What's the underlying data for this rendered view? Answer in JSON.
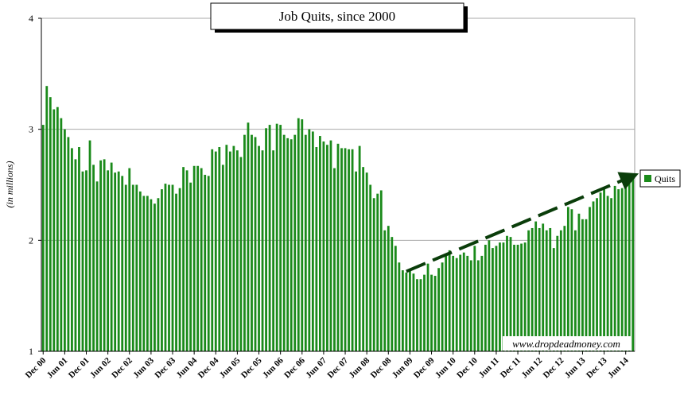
{
  "chart_data": {
    "type": "bar",
    "title": "Job Quits, since 2000",
    "ylabel": "(in millions)",
    "xlabel": "",
    "ylim": [
      1,
      4
    ],
    "yticks": [
      1,
      2,
      3,
      4
    ],
    "grid": true,
    "legend_position": "right",
    "x_start": "Dec 00",
    "x_tick_labels": [
      "Dec 00",
      "Jun 01",
      "Dec 01",
      "Jun 02",
      "Dec 02",
      "Jun 03",
      "Dec 03",
      "Jun 04",
      "Dec 04",
      "Jun 05",
      "Dec 05",
      "Jun 06",
      "Dec 06",
      "Jun 07",
      "Dec 07",
      "Jun 08",
      "Dec 08",
      "Jun 09",
      "Dec 09",
      "Jun 10",
      "Dec 10",
      "Jun 11",
      "Dec 11",
      "Jun 12",
      "Dec 12",
      "Jun 13",
      "Dec 13",
      "Jun 14"
    ],
    "series": [
      {
        "name": "Quits",
        "color": "#1a8a1a",
        "values": [
          3.04,
          3.39,
          3.29,
          3.18,
          3.2,
          3.1,
          3.0,
          2.93,
          2.83,
          2.73,
          2.84,
          2.62,
          2.63,
          2.9,
          2.68,
          2.53,
          2.72,
          2.73,
          2.63,
          2.7,
          2.61,
          2.62,
          2.58,
          2.5,
          2.65,
          2.5,
          2.5,
          2.44,
          2.4,
          2.4,
          2.37,
          2.33,
          2.38,
          2.46,
          2.51,
          2.5,
          2.5,
          2.42,
          2.47,
          2.66,
          2.63,
          2.52,
          2.67,
          2.67,
          2.65,
          2.59,
          2.58,
          2.82,
          2.8,
          2.84,
          2.68,
          2.86,
          2.8,
          2.85,
          2.81,
          2.75,
          2.95,
          3.06,
          2.95,
          2.93,
          2.85,
          2.81,
          3.01,
          3.04,
          2.81,
          3.05,
          3.04,
          2.95,
          2.92,
          2.91,
          2.95,
          3.1,
          3.09,
          2.95,
          3.0,
          2.98,
          2.84,
          2.94,
          2.89,
          2.86,
          2.9,
          2.65,
          2.87,
          2.83,
          2.83,
          2.82,
          2.82,
          2.62,
          2.85,
          2.66,
          2.61,
          2.5,
          2.38,
          2.42,
          2.45,
          2.09,
          2.13,
          2.03,
          1.95,
          1.8,
          1.73,
          1.71,
          1.74,
          1.7,
          1.65,
          1.65,
          1.69,
          1.79,
          1.69,
          1.68,
          1.75,
          1.8,
          1.86,
          1.91,
          1.86,
          1.84,
          1.87,
          1.89,
          1.86,
          1.82,
          1.95,
          1.82,
          1.86,
          1.96,
          2.0,
          1.93,
          1.95,
          1.98,
          1.98,
          2.04,
          2.03,
          1.96,
          1.96,
          1.97,
          1.98,
          2.09,
          2.11,
          2.17,
          2.11,
          2.15,
          2.09,
          2.11,
          1.93,
          2.04,
          2.09,
          2.13,
          2.3,
          2.28,
          2.09,
          2.24,
          2.19,
          2.19,
          2.3,
          2.35,
          2.38,
          2.43,
          2.46,
          2.4,
          2.38,
          2.49,
          2.46,
          2.47,
          2.49,
          2.52,
          2.55
        ]
      }
    ],
    "trend_arrow": {
      "from": [
        101,
        1.72
      ],
      "to": [
        164,
        2.58
      ],
      "style": "dashed"
    },
    "watermark": "www.dropdeadmoney.com"
  }
}
